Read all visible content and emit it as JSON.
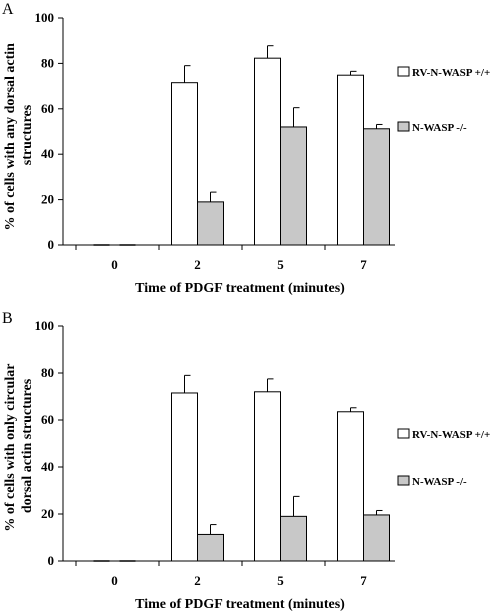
{
  "charts": [
    {
      "panel_label": "A",
      "chart_data": {
        "type": "bar",
        "categories": [
          "0",
          "2",
          "5",
          "7"
        ],
        "series": [
          {
            "name": "RV-N-WASP +/+",
            "values": [
              0,
              71.5,
              82.3,
              74.8
            ],
            "errors": [
              0,
              7.5,
              5.5,
              1.7
            ],
            "color": "#ffffff"
          },
          {
            "name": "N-WASP -/-",
            "values": [
              0,
              19,
              52,
              51.2
            ],
            "errors": [
              0,
              4.3,
              8.5,
              1.9
            ],
            "color": "#c8c8c8"
          }
        ],
        "xlabel": "Time of PDGF treatment (minutes)",
        "ylabel_lines": [
          "% of cells with any dorsal actin",
          "structures"
        ],
        "ylim": [
          0,
          100
        ],
        "yticks": [
          "0",
          "20",
          "40",
          "60",
          "80",
          "100"
        ],
        "legend_position": "right"
      }
    },
    {
      "panel_label": "B",
      "chart_data": {
        "type": "bar",
        "categories": [
          "0",
          "2",
          "5",
          "7"
        ],
        "series": [
          {
            "name": "RV-N-WASP +/+",
            "values": [
              0,
              71.5,
              72,
              63.5
            ],
            "errors": [
              0,
              7.5,
              5.5,
              1.7
            ],
            "color": "#ffffff"
          },
          {
            "name": "N-WASP -/-",
            "values": [
              0,
              11.3,
              19,
              19.6
            ],
            "errors": [
              0,
              4.2,
              8.5,
              1.9
            ],
            "color": "#c8c8c8"
          }
        ],
        "xlabel": "Time of PDGF treatment (minutes)",
        "ylabel_lines": [
          "% of cells with only circular",
          "dorsal actin structures"
        ],
        "ylim": [
          0,
          100
        ],
        "yticks": [
          "0",
          "20",
          "40",
          "60",
          "80",
          "100"
        ],
        "legend_position": "right"
      }
    }
  ]
}
